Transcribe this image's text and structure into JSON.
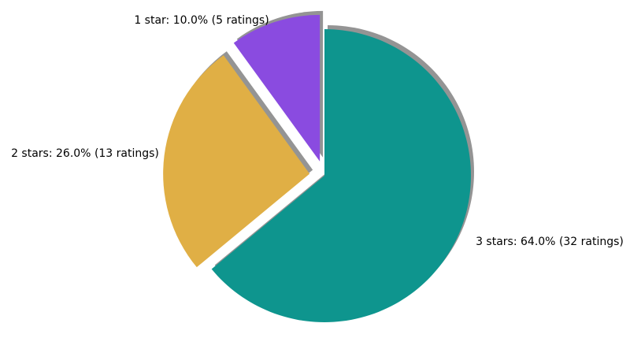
{
  "chart_data": {
    "type": "pie",
    "title": "",
    "categories": [
      "1 star",
      "2 stars",
      "3 stars"
    ],
    "values": [
      5,
      13,
      32
    ],
    "percentages": [
      10.0,
      26.0,
      64.0
    ],
    "labels": [
      "1 star: 10.0% (5 ratings)",
      "2 stars: 26.0% (13 ratings)",
      "3 stars: 64.0% (32 ratings)"
    ],
    "colors": [
      "#8a4be0",
      "#e0af45",
      "#0e958e"
    ],
    "exploded": [
      true,
      true,
      false
    ],
    "shadow": true,
    "start_angle_deg": 90,
    "direction": "counterclockwise"
  }
}
